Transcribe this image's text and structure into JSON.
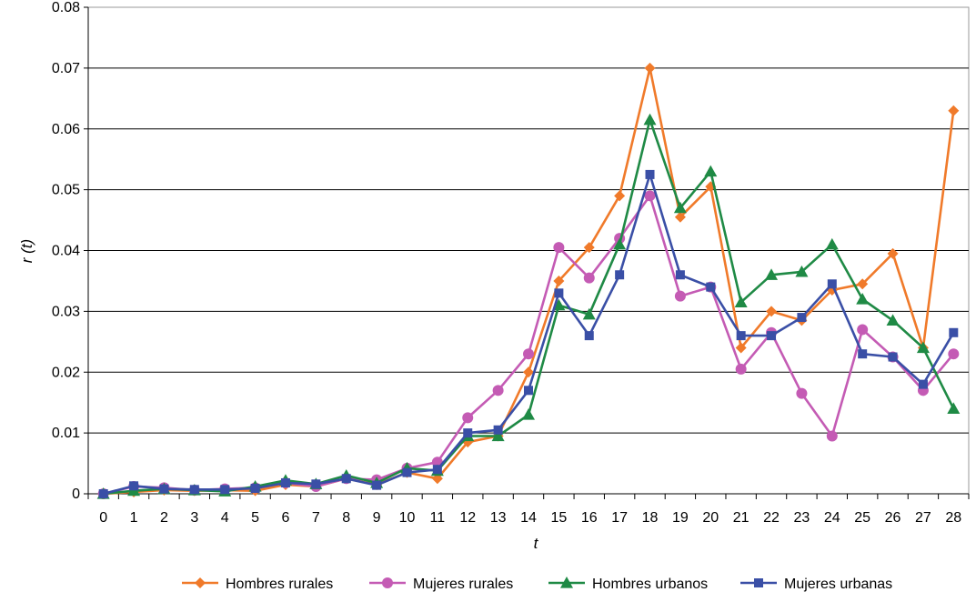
{
  "chart_data": {
    "type": "line",
    "title": "",
    "xlabel": "t",
    "ylabel": "r (t)",
    "x": [
      0,
      1,
      2,
      3,
      4,
      5,
      6,
      7,
      8,
      9,
      10,
      11,
      12,
      13,
      14,
      15,
      16,
      17,
      18,
      19,
      20,
      21,
      22,
      23,
      24,
      25,
      26,
      27,
      28
    ],
    "ylim": [
      0,
      0.08
    ],
    "yticks": [
      0,
      0.01,
      0.02,
      0.03,
      0.04,
      0.05,
      0.06,
      0.07,
      0.08
    ],
    "ytick_labels": [
      "0",
      "0.01",
      "0.02",
      "0.03",
      "0.04",
      "0.05",
      "0.06",
      "0.07",
      "0.08"
    ],
    "grid": "horizontal",
    "legend_position": "bottom",
    "series": [
      {
        "name": "Hombres rurales",
        "color": "#f07a2a",
        "marker": "diamond",
        "values": [
          0,
          0.0003,
          0.0006,
          0.0005,
          0.0006,
          0.0005,
          0.0015,
          0.0012,
          0.0025,
          0.0015,
          0.0035,
          0.0025,
          0.0085,
          0.0095,
          0.02,
          0.035,
          0.0405,
          0.049,
          0.07,
          0.0455,
          0.0505,
          0.024,
          0.03,
          0.0285,
          0.0335,
          0.0345,
          0.0395,
          0.024,
          0.063
        ]
      },
      {
        "name": "Mujeres rurales",
        "color": "#c45bb4",
        "marker": "circle",
        "values": [
          0,
          0.0012,
          0.001,
          0.0006,
          0.0008,
          0.001,
          0.0018,
          0.0012,
          0.0025,
          0.0023,
          0.0042,
          0.0052,
          0.0125,
          0.017,
          0.023,
          0.0405,
          0.0355,
          0.042,
          0.049,
          0.0325,
          0.034,
          0.0205,
          0.0265,
          0.0165,
          0.0095,
          0.027,
          0.0225,
          0.017,
          0.023
        ]
      },
      {
        "name": "Hombres urbanos",
        "color": "#1f8a45",
        "marker": "triangle",
        "values": [
          0,
          0.0005,
          0.0008,
          0.0006,
          0.0004,
          0.0012,
          0.0022,
          0.0016,
          0.003,
          0.0018,
          0.0042,
          0.0038,
          0.0095,
          0.0095,
          0.013,
          0.031,
          0.0295,
          0.041,
          0.0615,
          0.047,
          0.053,
          0.0315,
          0.036,
          0.0365,
          0.041,
          0.032,
          0.0285,
          0.024,
          0.014
        ]
      },
      {
        "name": "Mujeres urbanas",
        "color": "#3a4fa6",
        "marker": "square",
        "values": [
          0,
          0.0013,
          0.0008,
          0.0007,
          0.0007,
          0.0009,
          0.0018,
          0.0016,
          0.0025,
          0.0014,
          0.0035,
          0.004,
          0.01,
          0.0105,
          0.017,
          0.033,
          0.026,
          0.036,
          0.0525,
          0.036,
          0.034,
          0.026,
          0.026,
          0.029,
          0.0345,
          0.023,
          0.0225,
          0.018,
          0.0265
        ]
      }
    ]
  }
}
